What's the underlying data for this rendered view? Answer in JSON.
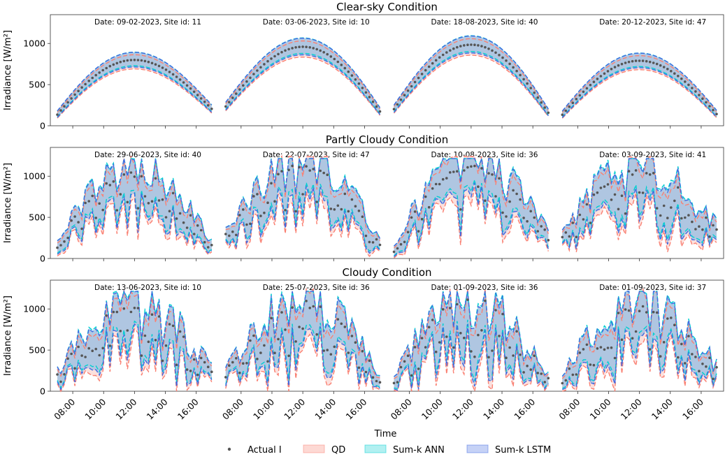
{
  "figure": {
    "xlabel": "Time",
    "ylabel": "Irradiance [W/m²]",
    "x_ticks": [
      "08:00",
      "10:00",
      "12:00",
      "14:00",
      "16:00"
    ],
    "legend": [
      {
        "label": "Actual I",
        "kind": "dot",
        "color": "#555555"
      },
      {
        "label": "QD",
        "kind": "patch",
        "color": "#fa8072"
      },
      {
        "label": "Sum-k ANN",
        "kind": "patch",
        "color": "#00ced1"
      },
      {
        "label": "Sum-k LSTM",
        "kind": "patch",
        "color": "#4169e1"
      }
    ],
    "colors": {
      "qd_line": "#fa8072",
      "qd_fill": "#fbd6d2",
      "ann_line": "#00ced1",
      "ann_fill": "#9ee9ea",
      "lstm_line": "#4169e1",
      "lstm_fill": "#a9c1e0",
      "actual": "#555555"
    }
  },
  "chart_data": [
    {
      "type": "line",
      "title": "Clear-sky Condition",
      "ylabel": "Irradiance [W/m²]",
      "ylim": [
        0,
        1350
      ],
      "yticks": [
        0,
        500,
        1000
      ],
      "x_day_range": [
        "07:00",
        "17:00"
      ],
      "days": [
        {
          "label": "Date: 09-02-2023, Site id: 11",
          "peak": 800,
          "start": 40,
          "end": 120,
          "noise": 0.0,
          "seed": 11
        },
        {
          "label": "Date: 03-06-2023, Site id: 10",
          "peak": 960,
          "start": 130,
          "end": 60,
          "noise": 0.0,
          "seed": 10
        },
        {
          "label": "Date: 18-08-2023, Site id: 40",
          "peak": 985,
          "start": 90,
          "end": 40,
          "noise": 0.0,
          "seed": 40
        },
        {
          "label": "Date: 20-12-2023, Site id: 47",
          "peak": 790,
          "start": 40,
          "end": 50,
          "noise": 0.0,
          "seed": 47
        }
      ]
    },
    {
      "type": "line",
      "title": "Partly Cloudy Condition",
      "ylabel": "Irradiance [W/m²]",
      "ylim": [
        0,
        1350
      ],
      "yticks": [
        0,
        500,
        1000
      ],
      "x_day_range": [
        "07:00",
        "17:00"
      ],
      "days": [
        {
          "label": "Date: 29-06-2023, Site id: 40",
          "peak": 1050,
          "start": 110,
          "end": 40,
          "noise": 0.45,
          "seed": 29
        },
        {
          "label": "Date: 22-07-2023, Site id: 47",
          "peak": 1150,
          "start": 180,
          "end": 30,
          "noise": 0.5,
          "seed": 22
        },
        {
          "label": "Date: 10-08-2023, Site id: 36",
          "peak": 1150,
          "start": 20,
          "end": 170,
          "noise": 0.5,
          "seed": 108
        },
        {
          "label": "Date: 03-09-2023, Site id: 41",
          "peak": 1100,
          "start": 140,
          "end": 260,
          "noise": 0.5,
          "seed": 309
        }
      ]
    },
    {
      "type": "line",
      "title": "Cloudy Condition",
      "ylabel": "Irradiance [W/m²]",
      "ylim": [
        0,
        1350
      ],
      "yticks": [
        0,
        500,
        1000
      ],
      "x_day_range": [
        "07:00",
        "17:00"
      ],
      "days": [
        {
          "label": "Date: 13-06-2023, Site id: 10",
          "peak": 1050,
          "start": 100,
          "end": 140,
          "noise": 0.6,
          "seed": 136
        },
        {
          "label": "Date: 25-07-2023, Site id: 36",
          "peak": 1100,
          "start": 130,
          "end": 30,
          "noise": 0.6,
          "seed": 257
        },
        {
          "label": "Date: 01-09-2023, Site id: 36",
          "peak": 1150,
          "start": 20,
          "end": 30,
          "noise": 0.65,
          "seed": 19
        },
        {
          "label": "Date: 01-09-2023, Site id: 37",
          "peak": 1050,
          "start": 30,
          "end": 210,
          "noise": 0.6,
          "seed": 37
        }
      ]
    }
  ]
}
